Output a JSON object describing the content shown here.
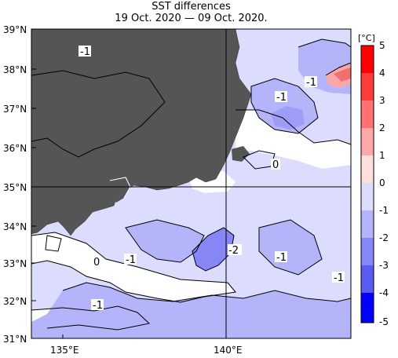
{
  "title": "SST differences",
  "subtitle": "19 Oct. 2020 — 09 Oct. 2020.",
  "map": {
    "lat_range": [
      31,
      39
    ],
    "lon_range": [
      134.2,
      144.2
    ],
    "lat_ticks": [
      "39°N",
      "38°N",
      "37°N",
      "36°N",
      "35°N",
      "34°N",
      "33°N",
      "32°N",
      "31°N"
    ],
    "lon_ticks": [
      "135°E",
      "140°E"
    ],
    "grid_lines": [
      "35°N",
      "140°E"
    ],
    "land_color": "#555555",
    "contour_labels": [
      "-1",
      "-1",
      "-1",
      "0",
      "0",
      "-1",
      "-2",
      "-1",
      "-1",
      "-1"
    ]
  },
  "colorbar": {
    "unit": "[°C]",
    "labels": [
      "5",
      "4",
      "3",
      "2",
      "1",
      "0",
      "-1",
      "-2",
      "-3",
      "-4",
      "-5"
    ],
    "colors": [
      "#ff0000",
      "#ff3333",
      "#ff6666",
      "#ff9999",
      "#ffcccc",
      "#ffffff",
      "#ccccff",
      "#9999ff",
      "#6666ff",
      "#3333ff",
      "#0000ff"
    ]
  }
}
